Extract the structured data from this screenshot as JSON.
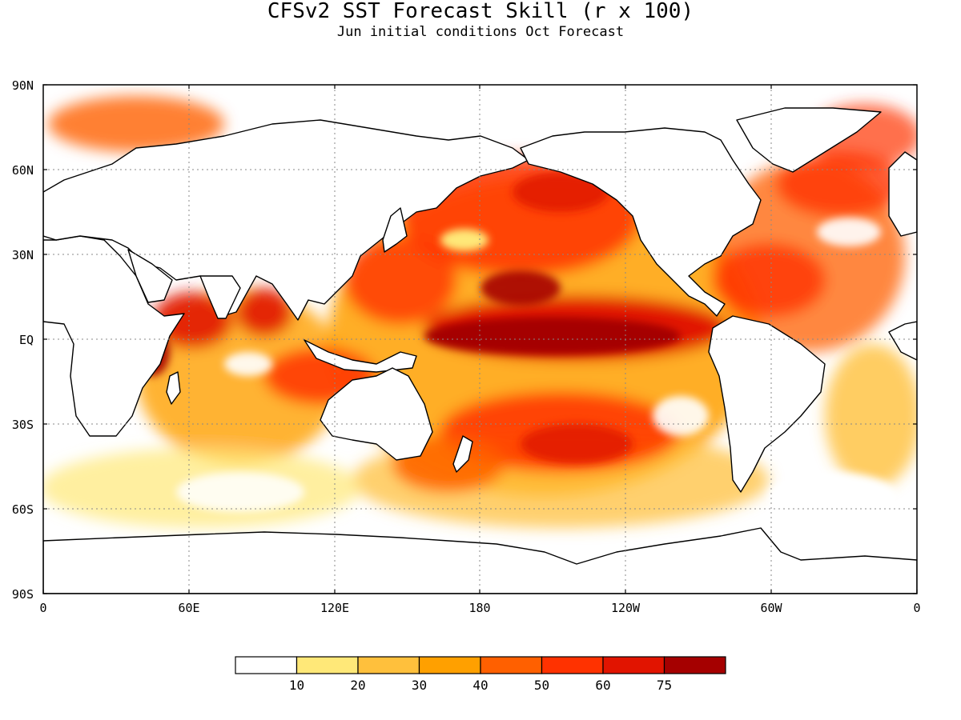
{
  "title": "CFSv2 SST Forecast Skill (r x 100)",
  "subtitle": "Jun initial conditions  Oct Forecast",
  "map": {
    "lat_ticks": [
      "90N",
      "60N",
      "30N",
      "EQ",
      "30S",
      "60S",
      "90S"
    ],
    "lon_ticks": [
      "0",
      "60E",
      "120E",
      "180",
      "120W",
      "60W",
      "0"
    ],
    "grid": "dotted",
    "land_color": "#ffffff"
  },
  "legend": {
    "colors": [
      "#ffffff",
      "#ffe878",
      "#ffc03c",
      "#ffa000",
      "#ff6000",
      "#ff3200",
      "#e11400",
      "#a50000"
    ],
    "labels": [
      "10",
      "20",
      "30",
      "40",
      "50",
      "60",
      "75"
    ]
  }
}
